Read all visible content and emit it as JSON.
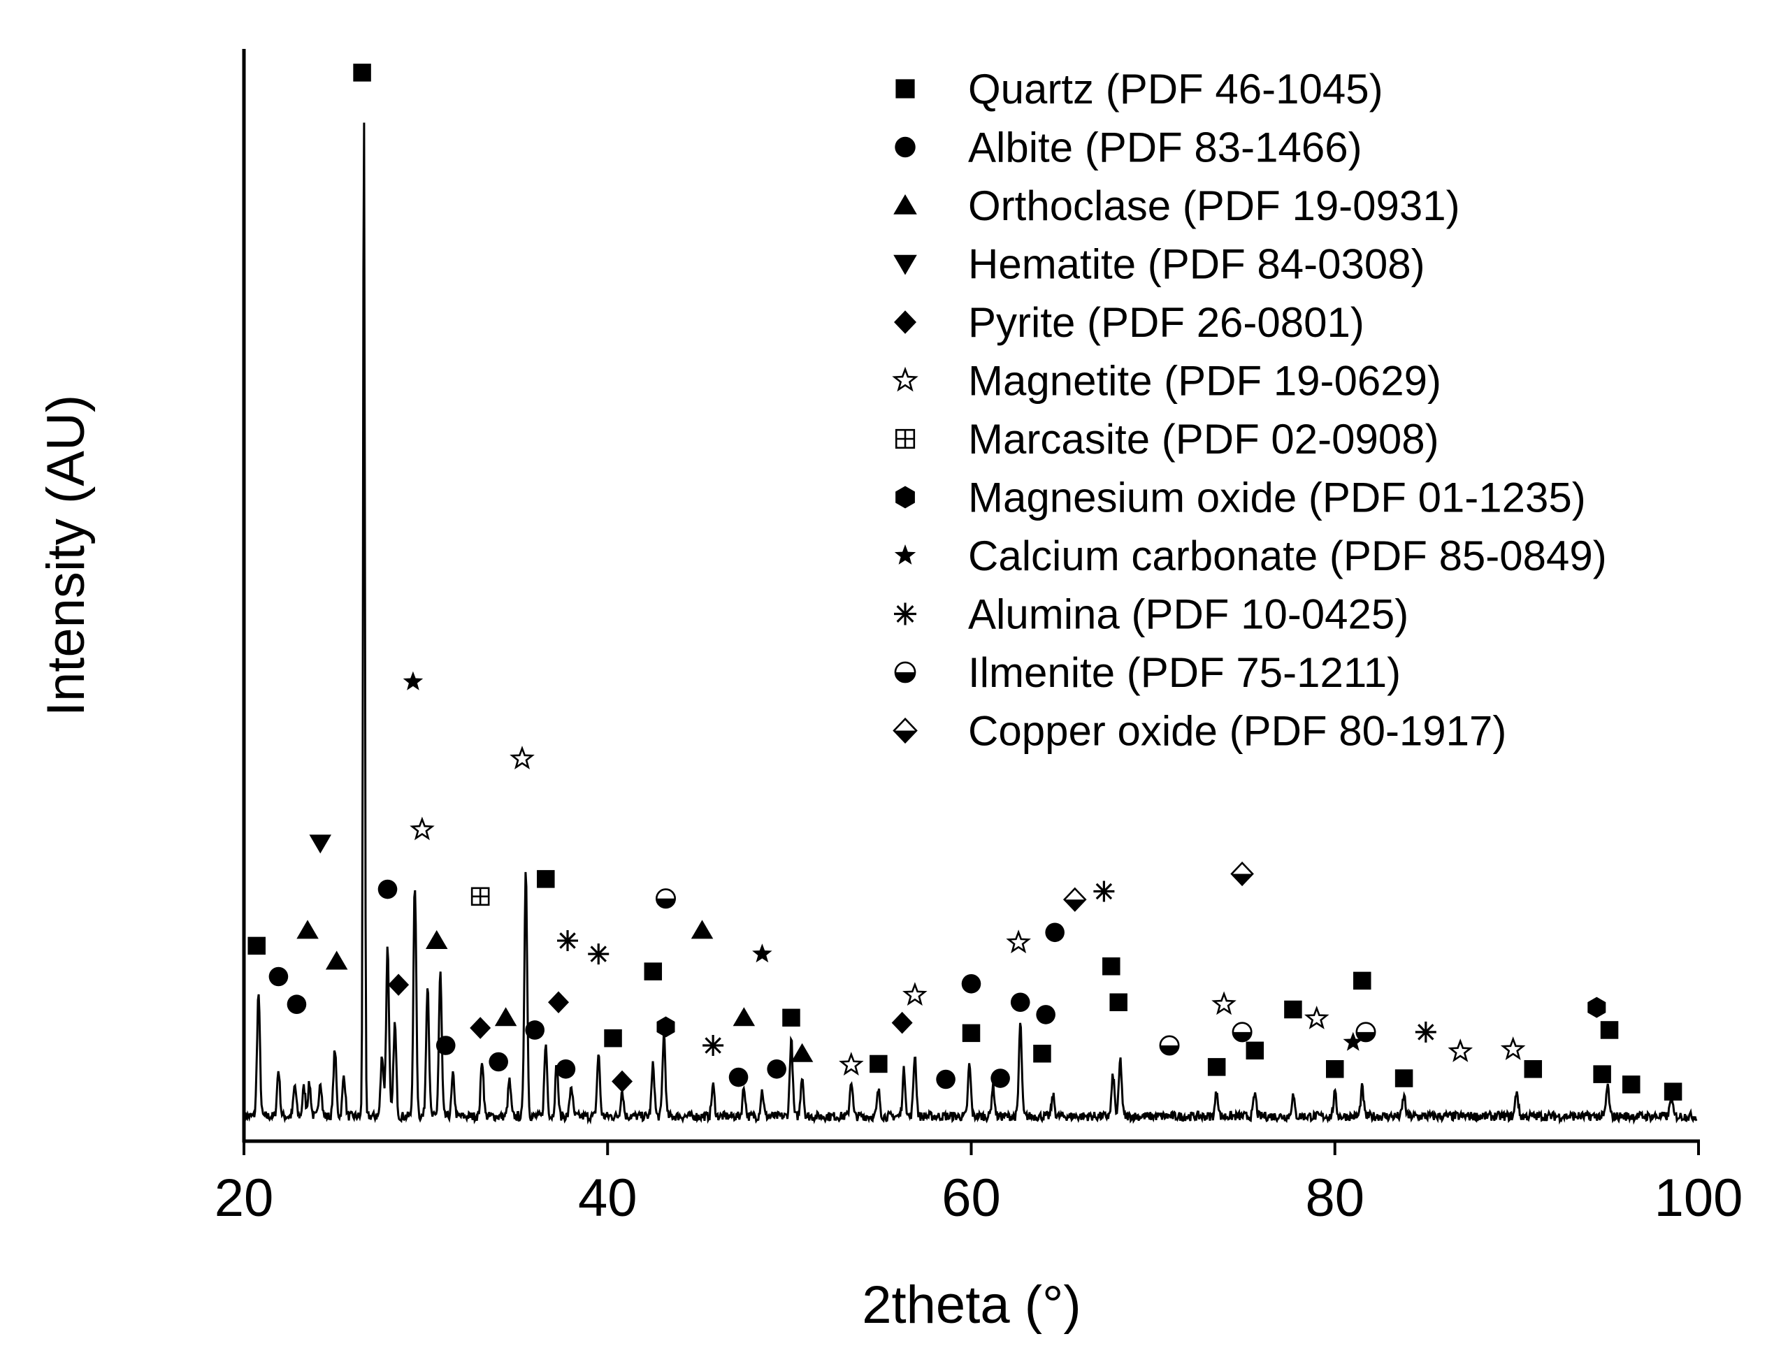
{
  "chart_data": {
    "type": "line",
    "title": "",
    "xlabel": "2theta  (°)",
    "ylabel": "Intensity  (AU)",
    "xlim": [
      20,
      100
    ],
    "ylim": [
      0,
      1000
    ],
    "x_ticks": [
      20,
      40,
      60,
      80,
      100
    ],
    "x_tick_labels": [
      "20",
      "40",
      "60",
      "80",
      "100"
    ],
    "y_ticks_shown": false,
    "legend_position": "top-right",
    "background": "#ffffff",
    "line_color": "#000000",
    "baseline_level": 14,
    "peaks": [
      {
        "x": 20.8,
        "y": 120
      },
      {
        "x": 21.9,
        "y": 45
      },
      {
        "x": 22.8,
        "y": 30
      },
      {
        "x": 23.3,
        "y": 28
      },
      {
        "x": 23.6,
        "y": 32
      },
      {
        "x": 24.2,
        "y": 35
      },
      {
        "x": 25.0,
        "y": 65
      },
      {
        "x": 25.5,
        "y": 40
      },
      {
        "x": 26.6,
        "y": 990
      },
      {
        "x": 27.6,
        "y": 60
      },
      {
        "x": 27.9,
        "y": 165
      },
      {
        "x": 28.3,
        "y": 90
      },
      {
        "x": 29.4,
        "y": 225
      },
      {
        "x": 30.1,
        "y": 130
      },
      {
        "x": 30.8,
        "y": 140
      },
      {
        "x": 31.5,
        "y": 40
      },
      {
        "x": 33.1,
        "y": 55
      },
      {
        "x": 34.6,
        "y": 35
      },
      {
        "x": 35.5,
        "y": 240
      },
      {
        "x": 36.6,
        "y": 70
      },
      {
        "x": 37.2,
        "y": 50
      },
      {
        "x": 38.0,
        "y": 30
      },
      {
        "x": 39.5,
        "y": 60
      },
      {
        "x": 40.8,
        "y": 25
      },
      {
        "x": 42.5,
        "y": 50
      },
      {
        "x": 43.1,
        "y": 80
      },
      {
        "x": 45.8,
        "y": 30
      },
      {
        "x": 47.5,
        "y": 28
      },
      {
        "x": 48.5,
        "y": 25
      },
      {
        "x": 50.1,
        "y": 75
      },
      {
        "x": 50.7,
        "y": 40
      },
      {
        "x": 53.4,
        "y": 35
      },
      {
        "x": 54.9,
        "y": 25
      },
      {
        "x": 56.3,
        "y": 45
      },
      {
        "x": 56.9,
        "y": 60
      },
      {
        "x": 59.9,
        "y": 50
      },
      {
        "x": 61.2,
        "y": 30
      },
      {
        "x": 62.7,
        "y": 90
      },
      {
        "x": 64.5,
        "y": 20
      },
      {
        "x": 67.8,
        "y": 40
      },
      {
        "x": 68.2,
        "y": 55
      },
      {
        "x": 73.5,
        "y": 25
      },
      {
        "x": 75.6,
        "y": 22
      },
      {
        "x": 77.7,
        "y": 20
      },
      {
        "x": 80.0,
        "y": 22
      },
      {
        "x": 81.5,
        "y": 28
      },
      {
        "x": 83.8,
        "y": 20
      },
      {
        "x": 90.0,
        "y": 25
      },
      {
        "x": 95.0,
        "y": 30
      },
      {
        "x": 98.5,
        "y": 18
      }
    ],
    "legend": [
      {
        "symbol": "square",
        "label": "Quartz (PDF 46-1045)"
      },
      {
        "symbol": "circle",
        "label": "Albite (PDF 83-1466)"
      },
      {
        "symbol": "triangle-up",
        "label": "Orthoclase (PDF 19-0931)"
      },
      {
        "symbol": "triangle-down",
        "label": "Hematite (PDF 84-0308)"
      },
      {
        "symbol": "diamond",
        "label": "Pyrite (PDF 26-0801)"
      },
      {
        "symbol": "star-open",
        "label": "Magnetite (PDF 19-0629)"
      },
      {
        "symbol": "square-cross",
        "label": "Marcasite (PDF 02-0908)"
      },
      {
        "symbol": "hexagon",
        "label": "Magnesium oxide (PDF 01-1235)"
      },
      {
        "symbol": "star-filled",
        "label": "Calcium carbonate (PDF 85-0849)"
      },
      {
        "symbol": "asterisk",
        "label": "Alumina  (PDF 10-0425)"
      },
      {
        "symbol": "circle-half",
        "label": "Ilmenite (PDF 75-1211)"
      },
      {
        "symbol": "diamond-half",
        "label": "Copper oxide (PDF 80-1917)"
      }
    ],
    "markers": [
      {
        "symbol": "square",
        "x": 20.7,
        "y": 180
      },
      {
        "symbol": "square",
        "x": 26.5,
        "y": 1030
      },
      {
        "symbol": "square",
        "x": 36.6,
        "y": 245
      },
      {
        "symbol": "square",
        "x": 40.3,
        "y": 90
      },
      {
        "symbol": "square",
        "x": 42.5,
        "y": 155
      },
      {
        "symbol": "square",
        "x": 50.1,
        "y": 110
      },
      {
        "symbol": "square",
        "x": 54.9,
        "y": 65
      },
      {
        "symbol": "square",
        "x": 60.0,
        "y": 95
      },
      {
        "symbol": "square",
        "x": 63.9,
        "y": 75
      },
      {
        "symbol": "square",
        "x": 67.7,
        "y": 160
      },
      {
        "symbol": "square",
        "x": 68.1,
        "y": 125
      },
      {
        "symbol": "square",
        "x": 73.5,
        "y": 62
      },
      {
        "symbol": "square",
        "x": 75.6,
        "y": 78
      },
      {
        "symbol": "square",
        "x": 77.7,
        "y": 118
      },
      {
        "symbol": "square",
        "x": 80.0,
        "y": 60
      },
      {
        "symbol": "square",
        "x": 81.5,
        "y": 146
      },
      {
        "symbol": "square",
        "x": 83.8,
        "y": 51
      },
      {
        "symbol": "square",
        "x": 90.9,
        "y": 60
      },
      {
        "symbol": "square",
        "x": 94.7,
        "y": 55
      },
      {
        "symbol": "square",
        "x": 95.1,
        "y": 98
      },
      {
        "symbol": "square",
        "x": 96.3,
        "y": 45
      },
      {
        "symbol": "square",
        "x": 98.6,
        "y": 38
      },
      {
        "symbol": "circle",
        "x": 21.9,
        "y": 150
      },
      {
        "symbol": "circle",
        "x": 22.9,
        "y": 123
      },
      {
        "symbol": "circle",
        "x": 27.9,
        "y": 235
      },
      {
        "symbol": "circle",
        "x": 31.1,
        "y": 83
      },
      {
        "symbol": "circle",
        "x": 34.0,
        "y": 67
      },
      {
        "symbol": "circle",
        "x": 36.0,
        "y": 98
      },
      {
        "symbol": "circle",
        "x": 37.7,
        "y": 60
      },
      {
        "symbol": "circle",
        "x": 47.2,
        "y": 52
      },
      {
        "symbol": "circle",
        "x": 49.3,
        "y": 60
      },
      {
        "symbol": "circle",
        "x": 58.6,
        "y": 50
      },
      {
        "symbol": "circle",
        "x": 60.0,
        "y": 143
      },
      {
        "symbol": "circle",
        "x": 61.6,
        "y": 51
      },
      {
        "symbol": "circle",
        "x": 62.7,
        "y": 125
      },
      {
        "symbol": "circle",
        "x": 64.1,
        "y": 113
      },
      {
        "symbol": "circle",
        "x": 64.6,
        "y": 193
      },
      {
        "symbol": "triangle-up",
        "x": 23.5,
        "y": 195
      },
      {
        "symbol": "triangle-up",
        "x": 25.1,
        "y": 165
      },
      {
        "symbol": "triangle-up",
        "x": 30.6,
        "y": 185
      },
      {
        "symbol": "triangle-up",
        "x": 34.4,
        "y": 110
      },
      {
        "symbol": "triangle-up",
        "x": 45.2,
        "y": 195
      },
      {
        "symbol": "triangle-up",
        "x": 47.5,
        "y": 110
      },
      {
        "symbol": "triangle-up",
        "x": 50.7,
        "y": 75
      },
      {
        "symbol": "triangle-down",
        "x": 24.2,
        "y": 280
      },
      {
        "symbol": "diamond",
        "x": 28.5,
        "y": 142
      },
      {
        "symbol": "diamond",
        "x": 33.0,
        "y": 100
      },
      {
        "symbol": "diamond",
        "x": 37.3,
        "y": 125
      },
      {
        "symbol": "diamond",
        "x": 40.8,
        "y": 48
      },
      {
        "symbol": "diamond",
        "x": 56.2,
        "y": 105
      },
      {
        "symbol": "star-open",
        "x": 29.8,
        "y": 293
      },
      {
        "symbol": "star-open",
        "x": 35.3,
        "y": 362
      },
      {
        "symbol": "star-open",
        "x": 53.4,
        "y": 64
      },
      {
        "symbol": "star-open",
        "x": 56.9,
        "y": 132
      },
      {
        "symbol": "star-open",
        "x": 62.6,
        "y": 183
      },
      {
        "symbol": "star-open",
        "x": 73.9,
        "y": 123
      },
      {
        "symbol": "star-open",
        "x": 79.0,
        "y": 109
      },
      {
        "symbol": "star-open",
        "x": 86.9,
        "y": 77
      },
      {
        "symbol": "star-open",
        "x": 89.8,
        "y": 79
      },
      {
        "symbol": "square-cross",
        "x": 33.0,
        "y": 228
      },
      {
        "symbol": "hexagon",
        "x": 43.2,
        "y": 101
      },
      {
        "symbol": "hexagon",
        "x": 94.4,
        "y": 120
      },
      {
        "symbol": "star-filled",
        "x": 29.3,
        "y": 437
      },
      {
        "symbol": "star-filled",
        "x": 48.5,
        "y": 172
      },
      {
        "symbol": "star-filled",
        "x": 81.0,
        "y": 86
      },
      {
        "symbol": "asterisk",
        "x": 37.8,
        "y": 185
      },
      {
        "symbol": "asterisk",
        "x": 39.5,
        "y": 172
      },
      {
        "symbol": "asterisk",
        "x": 45.8,
        "y": 83
      },
      {
        "symbol": "asterisk",
        "x": 67.3,
        "y": 233
      },
      {
        "symbol": "asterisk",
        "x": 85.0,
        "y": 96
      },
      {
        "symbol": "circle-half",
        "x": 43.2,
        "y": 226
      },
      {
        "symbol": "circle-half",
        "x": 70.9,
        "y": 83
      },
      {
        "symbol": "circle-half",
        "x": 74.9,
        "y": 96
      },
      {
        "symbol": "circle-half",
        "x": 81.7,
        "y": 96
      },
      {
        "symbol": "diamond-half",
        "x": 65.7,
        "y": 225
      },
      {
        "symbol": "diamond-half",
        "x": 74.9,
        "y": 250
      }
    ]
  }
}
